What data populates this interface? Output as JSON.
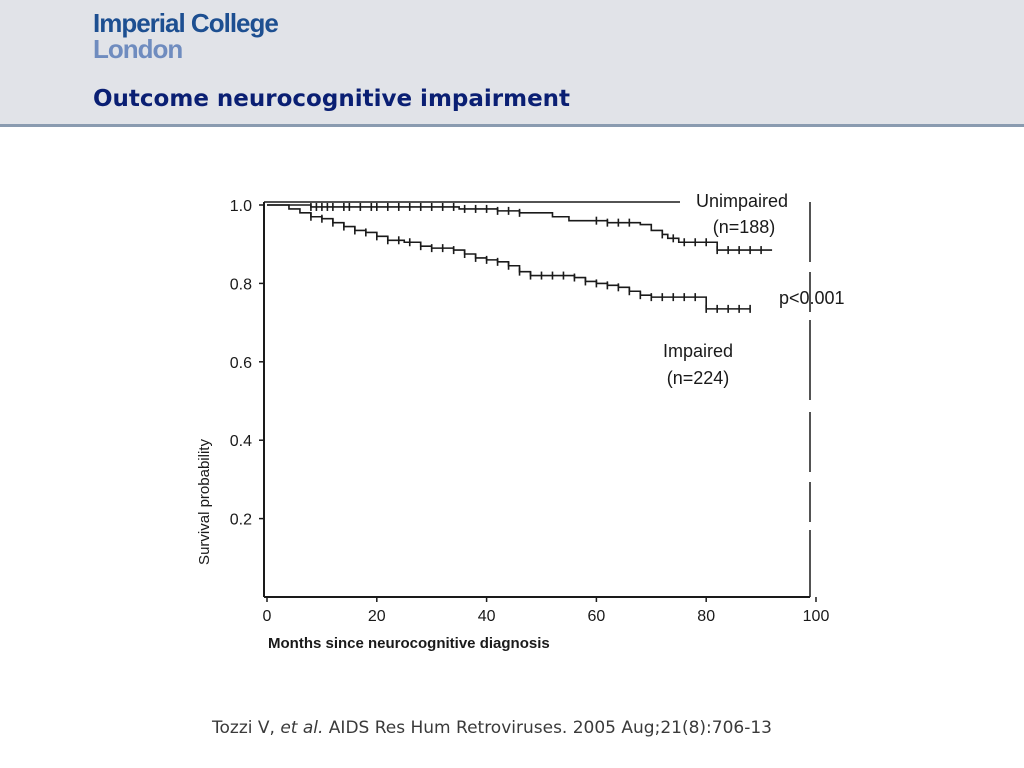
{
  "header": {
    "logo_line1": "Imperial College",
    "logo_line2": "London",
    "title": "Outcome neurocognitive impairment"
  },
  "colors": {
    "header_bg": "#e1e3e8",
    "title": "#0a1f73",
    "logo_primary": "#1d4f91",
    "logo_secondary": "#6f8cbf",
    "curve": "#1a1a1a"
  },
  "chart_data": {
    "type": "line",
    "subtype": "kaplan-meier step curve",
    "title": "",
    "xlabel": "Months since neurocognitive diagnosis",
    "ylabel": "Survival probability",
    "xlim": [
      0,
      100
    ],
    "ylim": [
      0,
      1.0
    ],
    "x_ticks": [
      "0",
      "20",
      "40",
      "60",
      "80",
      "100"
    ],
    "y_ticks": [
      "0.2",
      "0.4",
      "0.6",
      "0.8",
      "1.0"
    ],
    "grid": false,
    "series": [
      {
        "name": "Unimpaired",
        "label_line1": "Unimpaired",
        "label_line2": "(n=188)",
        "x": [
          0,
          8,
          12,
          18,
          22,
          30,
          35,
          38,
          42,
          46,
          50,
          52,
          55,
          60,
          62,
          65,
          68,
          70,
          72,
          73,
          75,
          80,
          82,
          85,
          88,
          92
        ],
        "y": [
          1.0,
          0.995,
          0.995,
          0.995,
          0.995,
          0.995,
          0.99,
          0.99,
          0.985,
          0.98,
          0.98,
          0.97,
          0.96,
          0.96,
          0.955,
          0.955,
          0.95,
          0.935,
          0.925,
          0.915,
          0.905,
          0.905,
          0.885,
          0.885,
          0.885,
          0.885
        ],
        "censor_x": [
          8,
          9,
          10,
          11,
          12,
          14,
          15,
          17,
          19,
          20,
          22,
          24,
          26,
          28,
          30,
          32,
          34,
          36,
          38,
          40,
          42,
          44,
          46,
          60,
          62,
          64,
          66,
          72,
          74,
          76,
          78,
          80,
          82,
          84,
          86,
          88,
          90
        ]
      },
      {
        "name": "Impaired",
        "label_line1": "Impaired",
        "label_line2": "(n=224)",
        "x": [
          0,
          4,
          6,
          8,
          10,
          12,
          14,
          16,
          18,
          20,
          22,
          25,
          28,
          30,
          34,
          36,
          38,
          40,
          42,
          44,
          46,
          48,
          52,
          56,
          58,
          60,
          62,
          64,
          66,
          68,
          70,
          72,
          75,
          80,
          82,
          85,
          88
        ],
        "y": [
          1.0,
          0.99,
          0.98,
          0.97,
          0.965,
          0.955,
          0.945,
          0.935,
          0.93,
          0.92,
          0.91,
          0.905,
          0.895,
          0.89,
          0.885,
          0.875,
          0.865,
          0.86,
          0.855,
          0.845,
          0.83,
          0.82,
          0.82,
          0.815,
          0.805,
          0.8,
          0.795,
          0.79,
          0.78,
          0.77,
          0.765,
          0.765,
          0.765,
          0.735,
          0.735,
          0.735,
          0.735
        ],
        "censor_x": [
          8,
          10,
          12,
          14,
          16,
          18,
          20,
          22,
          24,
          26,
          28,
          30,
          32,
          34,
          36,
          38,
          40,
          42,
          44,
          46,
          48,
          50,
          52,
          54,
          56,
          58,
          60,
          62,
          64,
          66,
          68,
          70,
          72,
          74,
          76,
          78,
          80,
          82,
          84,
          86,
          88
        ]
      }
    ],
    "annotation": "p<0.001"
  },
  "citation": {
    "author": "Tozzi V,",
    "etal": "et al.",
    "source": "AIDS Res Hum Retroviruses. 2005 Aug;21(8):706-13"
  }
}
